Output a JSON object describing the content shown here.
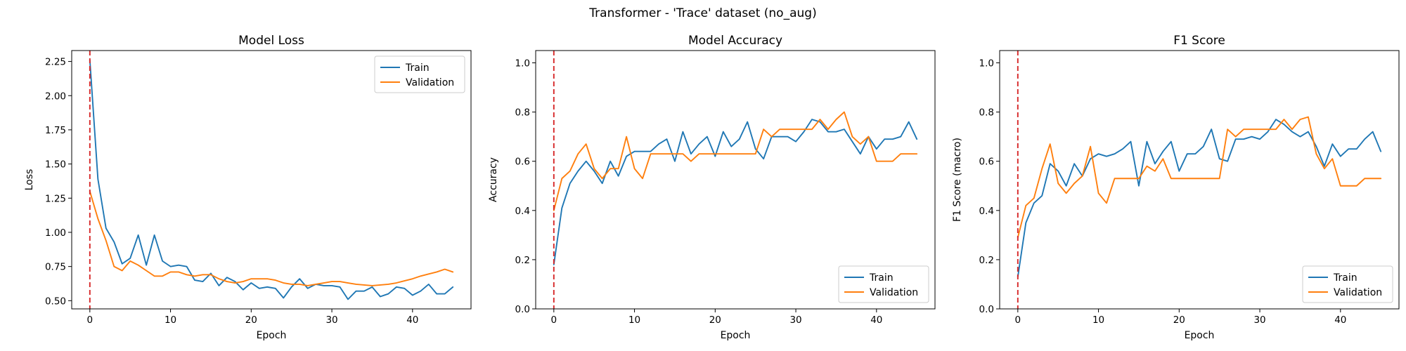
{
  "figure": {
    "suptitle": "Transformer - 'Trace' dataset (no_aug)"
  },
  "colors": {
    "train": "#1f77b4",
    "validation": "#ff7f0e",
    "vline": "#d62728",
    "axes": "#000000",
    "background": "#ffffff"
  },
  "chart_data": [
    {
      "type": "line",
      "title": "Model Loss",
      "xlabel": "Epoch",
      "ylabel": "Loss",
      "xlim": [
        -2.25,
        47.25
      ],
      "ylim": [
        0.44,
        2.33
      ],
      "xticks": [
        0,
        10,
        20,
        30,
        40
      ],
      "xtick_labels": [
        "0",
        "10",
        "20",
        "30",
        "40"
      ],
      "yticks": [
        0.5,
        0.75,
        1.0,
        1.25,
        1.5,
        1.75,
        2.0,
        2.25
      ],
      "ytick_labels": [
        "0.50",
        "0.75",
        "1.00",
        "1.25",
        "1.50",
        "1.75",
        "2.00",
        "2.25"
      ],
      "vline_x": 0,
      "legend_loc": "upper right",
      "grid": false,
      "x": [
        0,
        1,
        2,
        3,
        4,
        5,
        6,
        7,
        8,
        9,
        10,
        11,
        12,
        13,
        14,
        15,
        16,
        17,
        18,
        19,
        20,
        21,
        22,
        23,
        24,
        25,
        26,
        27,
        28,
        29,
        30,
        31,
        32,
        33,
        34,
        35,
        36,
        37,
        38,
        39,
        40,
        41,
        42,
        43,
        44,
        45
      ],
      "series": [
        {
          "name": "Train",
          "values": [
            2.26,
            1.39,
            1.03,
            0.93,
            0.77,
            0.81,
            0.98,
            0.76,
            0.98,
            0.79,
            0.75,
            0.76,
            0.75,
            0.65,
            0.64,
            0.7,
            0.61,
            0.67,
            0.64,
            0.58,
            0.63,
            0.59,
            0.6,
            0.59,
            0.52,
            0.6,
            0.66,
            0.59,
            0.62,
            0.61,
            0.61,
            0.6,
            0.51,
            0.57,
            0.57,
            0.6,
            0.53,
            0.55,
            0.6,
            0.59,
            0.54,
            0.57,
            0.62,
            0.55,
            0.55,
            0.6
          ]
        },
        {
          "name": "Validation",
          "values": [
            1.3,
            1.1,
            0.94,
            0.75,
            0.72,
            0.79,
            0.76,
            0.72,
            0.68,
            0.68,
            0.71,
            0.71,
            0.69,
            0.68,
            0.69,
            0.69,
            0.66,
            0.64,
            0.63,
            0.64,
            0.66,
            0.66,
            0.66,
            0.65,
            0.63,
            0.62,
            0.62,
            0.61,
            0.62,
            0.63,
            0.64,
            0.64,
            0.63,
            0.62,
            0.615,
            0.61,
            0.615,
            0.62,
            0.63,
            0.645,
            0.66,
            0.68,
            0.695,
            0.71,
            0.73,
            0.71
          ]
        }
      ]
    },
    {
      "type": "line",
      "title": "Model Accuracy",
      "xlabel": "Epoch",
      "ylabel": "Accuracy",
      "xlim": [
        -2.25,
        47.25
      ],
      "ylim": [
        0.0,
        1.05
      ],
      "xticks": [
        0,
        10,
        20,
        30,
        40
      ],
      "xtick_labels": [
        "0",
        "10",
        "20",
        "30",
        "40"
      ],
      "yticks": [
        0.0,
        0.2,
        0.4,
        0.6,
        0.8,
        1.0
      ],
      "ytick_labels": [
        "0.0",
        "0.2",
        "0.4",
        "0.6",
        "0.8",
        "1.0"
      ],
      "vline_x": 0,
      "legend_loc": "lower right",
      "grid": false,
      "x": [
        0,
        1,
        2,
        3,
        4,
        5,
        6,
        7,
        8,
        9,
        10,
        11,
        12,
        13,
        14,
        15,
        16,
        17,
        18,
        19,
        20,
        21,
        22,
        23,
        24,
        25,
        26,
        27,
        28,
        29,
        30,
        31,
        32,
        33,
        34,
        35,
        36,
        37,
        38,
        39,
        40,
        41,
        42,
        43,
        44,
        45
      ],
      "series": [
        {
          "name": "Train",
          "values": [
            0.18,
            0.41,
            0.51,
            0.56,
            0.6,
            0.56,
            0.51,
            0.6,
            0.54,
            0.62,
            0.64,
            0.64,
            0.64,
            0.67,
            0.69,
            0.6,
            0.72,
            0.63,
            0.67,
            0.7,
            0.62,
            0.72,
            0.66,
            0.69,
            0.76,
            0.65,
            0.61,
            0.7,
            0.7,
            0.7,
            0.68,
            0.72,
            0.77,
            0.76,
            0.72,
            0.72,
            0.73,
            0.68,
            0.63,
            0.7,
            0.65,
            0.69,
            0.69,
            0.7,
            0.76,
            0.69
          ]
        },
        {
          "name": "Validation",
          "values": [
            0.4,
            0.53,
            0.56,
            0.63,
            0.67,
            0.57,
            0.53,
            0.57,
            0.57,
            0.7,
            0.57,
            0.53,
            0.63,
            0.63,
            0.63,
            0.63,
            0.63,
            0.6,
            0.63,
            0.63,
            0.63,
            0.63,
            0.63,
            0.63,
            0.63,
            0.63,
            0.73,
            0.7,
            0.73,
            0.73,
            0.73,
            0.73,
            0.73,
            0.77,
            0.73,
            0.77,
            0.8,
            0.7,
            0.67,
            0.7,
            0.6,
            0.6,
            0.6,
            0.63,
            0.63,
            0.63
          ]
        }
      ]
    },
    {
      "type": "line",
      "title": "F1 Score",
      "xlabel": "Epoch",
      "ylabel": "F1 Score (macro)",
      "xlim": [
        -2.25,
        47.25
      ],
      "ylim": [
        0.0,
        1.05
      ],
      "xticks": [
        0,
        10,
        20,
        30,
        40
      ],
      "xtick_labels": [
        "0",
        "10",
        "20",
        "30",
        "40"
      ],
      "yticks": [
        0.0,
        0.2,
        0.4,
        0.6,
        0.8,
        1.0
      ],
      "ytick_labels": [
        "0.0",
        "0.2",
        "0.4",
        "0.6",
        "0.8",
        "1.0"
      ],
      "vline_x": 0,
      "legend_loc": "lower right",
      "grid": false,
      "x": [
        0,
        1,
        2,
        3,
        4,
        5,
        6,
        7,
        8,
        9,
        10,
        11,
        12,
        13,
        14,
        15,
        16,
        17,
        18,
        19,
        20,
        21,
        22,
        23,
        24,
        25,
        26,
        27,
        28,
        29,
        30,
        31,
        32,
        33,
        34,
        35,
        36,
        37,
        38,
        39,
        40,
        41,
        42,
        43,
        44,
        45
      ],
      "series": [
        {
          "name": "Train",
          "values": [
            0.13,
            0.35,
            0.43,
            0.46,
            0.59,
            0.56,
            0.5,
            0.59,
            0.54,
            0.61,
            0.63,
            0.62,
            0.63,
            0.65,
            0.68,
            0.5,
            0.68,
            0.59,
            0.64,
            0.68,
            0.56,
            0.63,
            0.63,
            0.66,
            0.73,
            0.61,
            0.6,
            0.69,
            0.69,
            0.7,
            0.69,
            0.72,
            0.77,
            0.75,
            0.72,
            0.7,
            0.72,
            0.66,
            0.58,
            0.67,
            0.62,
            0.65,
            0.65,
            0.69,
            0.72,
            0.64
          ]
        },
        {
          "name": "Validation",
          "values": [
            0.29,
            0.42,
            0.45,
            0.57,
            0.67,
            0.51,
            0.47,
            0.51,
            0.54,
            0.66,
            0.47,
            0.43,
            0.53,
            0.53,
            0.53,
            0.53,
            0.58,
            0.56,
            0.61,
            0.53,
            0.53,
            0.53,
            0.53,
            0.53,
            0.53,
            0.53,
            0.73,
            0.7,
            0.73,
            0.73,
            0.73,
            0.73,
            0.73,
            0.77,
            0.73,
            0.77,
            0.78,
            0.63,
            0.57,
            0.61,
            0.5,
            0.5,
            0.5,
            0.53,
            0.53,
            0.53
          ]
        }
      ]
    }
  ]
}
